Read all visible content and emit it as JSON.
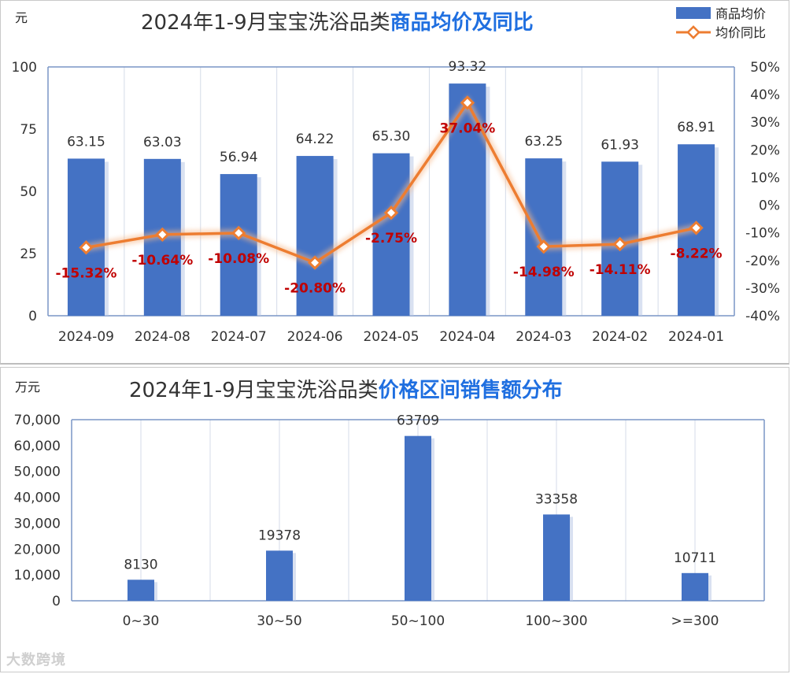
{
  "chart_data": [
    {
      "type": "bar+line",
      "title_prefix": "2024年1-9月宝宝洗浴品类",
      "title_highlight": "商品均价及同比",
      "y_unit": "元",
      "categories": [
        "2024-09",
        "2024-08",
        "2024-07",
        "2024-06",
        "2024-05",
        "2024-04",
        "2024-03",
        "2024-02",
        "2024-01"
      ],
      "series": [
        {
          "name": "商品均价",
          "type": "bar",
          "axis": "left",
          "color": "#4472c4",
          "values": [
            63.15,
            63.03,
            56.94,
            64.22,
            65.3,
            93.32,
            63.25,
            61.93,
            68.91
          ],
          "labels": [
            "63.15",
            "63.03",
            "56.94",
            "64.22",
            "65.30",
            "93.32",
            "63.25",
            "61.93",
            "68.91"
          ]
        },
        {
          "name": "均价同比",
          "type": "line",
          "axis": "right",
          "color": "#ed7d31",
          "values": [
            -15.32,
            -10.64,
            -10.08,
            -20.8,
            -2.75,
            37.04,
            -14.98,
            -14.11,
            -8.22
          ],
          "labels": [
            "-15.32%",
            "-10.64%",
            "-10.08%",
            "-20.80%",
            "-2.75%",
            "37.04%",
            "-14.98%",
            "-14.11%",
            "-8.22%"
          ]
        }
      ],
      "y_left": {
        "min": 0,
        "max": 100,
        "ticks": [
          "0",
          "25",
          "50",
          "75",
          "100"
        ]
      },
      "y_right": {
        "min": -40,
        "max": 50,
        "ticks": [
          "-40%",
          "-30%",
          "-20%",
          "-10%",
          "0%",
          "10%",
          "20%",
          "30%",
          "40%",
          "50%"
        ]
      },
      "legend": "top-right",
      "grid": true
    },
    {
      "type": "bar",
      "title_prefix": "2024年1-9月宝宝洗浴品类",
      "title_highlight": "价格区间销售额分布",
      "y_unit": "万元",
      "categories": [
        "0~30",
        "30~50",
        "50~100",
        "100~300",
        ">=300"
      ],
      "values": [
        8130,
        19378,
        63709,
        33358,
        10711
      ],
      "labels": [
        "8130",
        "19378",
        "63709",
        "33358",
        "10711"
      ],
      "color": "#4472c4",
      "y": {
        "min": 0,
        "max": 70000,
        "ticks": [
          "0",
          "10,000",
          "20,000",
          "30,000",
          "40,000",
          "50,000",
          "60,000",
          "70,000"
        ]
      },
      "grid": true
    }
  ],
  "watermark": "大数跨境"
}
